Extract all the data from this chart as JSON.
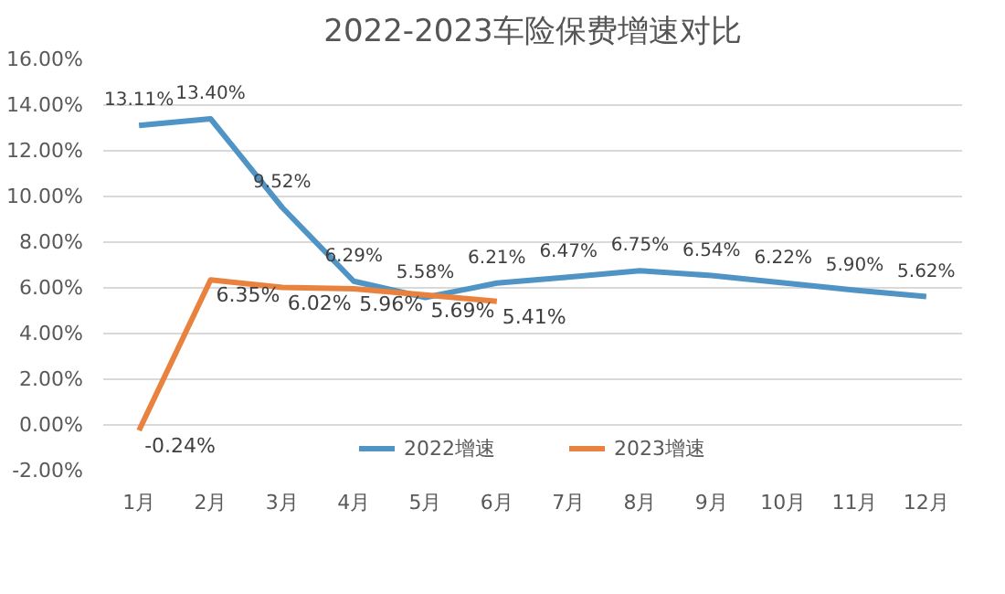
{
  "chart_data": {
    "type": "line",
    "title": "2022-2023车险保费增速对比",
    "categories": [
      "1月",
      "2月",
      "3月",
      "4月",
      "5月",
      "6月",
      "7月",
      "8月",
      "9月",
      "10月",
      "11月",
      "12月"
    ],
    "series": [
      {
        "name": "2022增速",
        "color": "#4f94c4",
        "values": [
          13.11,
          13.4,
          9.52,
          6.29,
          5.58,
          6.21,
          6.47,
          6.75,
          6.54,
          6.22,
          5.9,
          5.62
        ],
        "value_labels": [
          "13.11%",
          "13.40%",
          "9.52%",
          "6.29%",
          "5.58%",
          "6.21%",
          "6.47%",
          "6.75%",
          "6.54%",
          "6.22%",
          "5.90%",
          "5.62%"
        ]
      },
      {
        "name": "2023增速",
        "color": "#e8823e",
        "values": [
          -0.24,
          6.35,
          6.02,
          5.96,
          5.69,
          5.41,
          null,
          null,
          null,
          null,
          null,
          null
        ],
        "value_labels": [
          "-0.24%",
          "6.35%",
          "6.02%",
          "5.96%",
          "5.69%",
          "5.41%",
          null,
          null,
          null,
          null,
          null,
          null
        ]
      }
    ],
    "ylim": [
      -2,
      16
    ],
    "yticks": [
      {
        "value": -2,
        "label": "-2.00%"
      },
      {
        "value": 0,
        "label": "0.00%"
      },
      {
        "value": 2,
        "label": "2.00%"
      },
      {
        "value": 4,
        "label": "4.00%"
      },
      {
        "value": 6,
        "label": "6.00%"
      },
      {
        "value": 8,
        "label": "8.00%"
      },
      {
        "value": 10,
        "label": "10.00%"
      },
      {
        "value": 12,
        "label": "12.00%"
      },
      {
        "value": 14,
        "label": "14.00%"
      },
      {
        "value": 16,
        "label": "16.00%"
      }
    ],
    "grid": "y",
    "legend": "bottom",
    "marker": "none",
    "line_style": "solid"
  }
}
